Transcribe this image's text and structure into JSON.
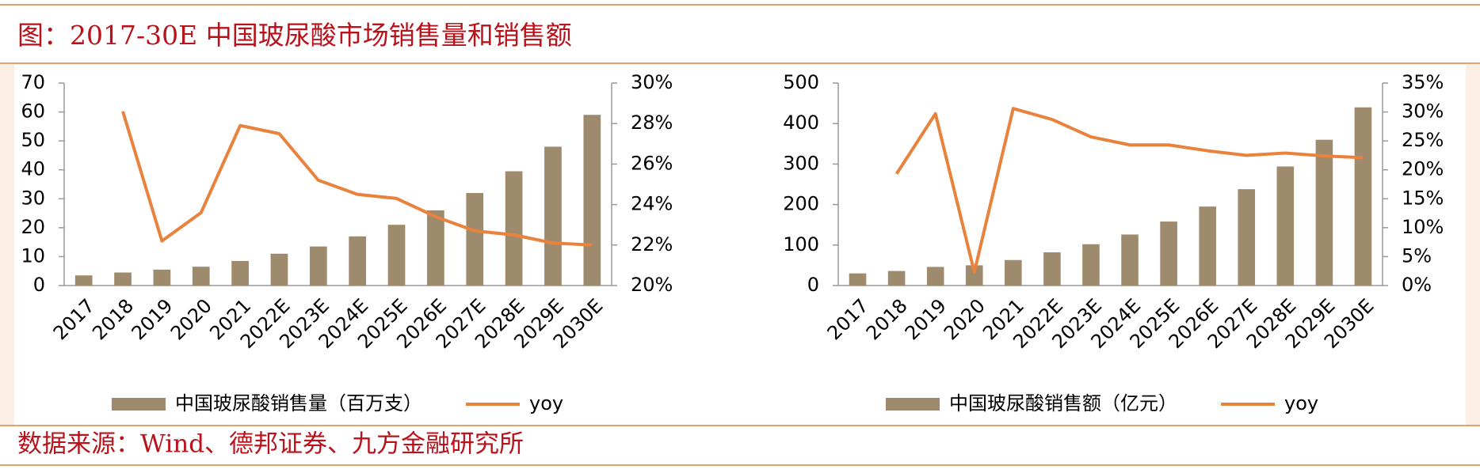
{
  "header": {
    "title": "图：2017-30E 中国玻尿酸市场销售量和销售额"
  },
  "footer": {
    "source": "数据来源：Wind、德邦证券、九方金融研究所"
  },
  "chart_data": [
    {
      "type": "bar",
      "categories": [
        "2017",
        "2018",
        "2019",
        "2020",
        "2021",
        "2022E",
        "2023E",
        "2024E",
        "2025E",
        "2026E",
        "2027E",
        "2028E",
        "2029E",
        "2030E"
      ],
      "series": [
        {
          "name": "中国玻尿酸销售量（百万支）",
          "color": "#9e8a6c",
          "type": "bar",
          "values": [
            3.5,
            4.5,
            5.5,
            6.5,
            8.5,
            11,
            13.5,
            17,
            21,
            26,
            32,
            39.5,
            48,
            59
          ]
        },
        {
          "name": "yoy",
          "color": "#e8823c",
          "type": "line",
          "axis": "y2",
          "values": [
            null,
            28.6,
            22.2,
            23.6,
            27.9,
            27.5,
            25.2,
            24.5,
            24.3,
            23.4,
            22.7,
            22.5,
            22.1,
            22.0
          ]
        }
      ],
      "ylim": [
        0,
        70
      ],
      "yticks": [
        0,
        10,
        20,
        30,
        40,
        50,
        60,
        70
      ],
      "y2lim": [
        20,
        30
      ],
      "y2ticks": [
        {
          "value": 20,
          "label": "20%"
        },
        {
          "value": 22,
          "label": "22%"
        },
        {
          "value": 24,
          "label": "24%"
        },
        {
          "value": 26,
          "label": "26%"
        },
        {
          "value": 28,
          "label": "28%"
        },
        {
          "value": 30,
          "label": "30%"
        }
      ],
      "legend": "bottom"
    },
    {
      "type": "bar",
      "categories": [
        "2017",
        "2018",
        "2019",
        "2020",
        "2021",
        "2022E",
        "2023E",
        "2024E",
        "2025E",
        "2026E",
        "2027E",
        "2028E",
        "2029E",
        "2030E"
      ],
      "series": [
        {
          "name": "中国玻尿酸销售额（亿元）",
          "color": "#9e8a6c",
          "type": "bar",
          "values": [
            30,
            36,
            46,
            50,
            63,
            82,
            102,
            126,
            158,
            195,
            238,
            294,
            360,
            440
          ]
        },
        {
          "name": "yoy",
          "color": "#e8823c",
          "type": "line",
          "axis": "y2",
          "values": [
            null,
            19.3,
            29.7,
            2.3,
            30.6,
            28.7,
            25.7,
            24.3,
            24.3,
            23.3,
            22.5,
            22.9,
            22.4,
            22.1
          ]
        }
      ],
      "ylim": [
        0,
        500
      ],
      "yticks": [
        0,
        100,
        200,
        300,
        400,
        500
      ],
      "y2lim": [
        0,
        35
      ],
      "y2ticks": [
        {
          "value": 0,
          "label": "0%"
        },
        {
          "value": 5,
          "label": "5%"
        },
        {
          "value": 10,
          "label": "10%"
        },
        {
          "value": 15,
          "label": "15%"
        },
        {
          "value": 20,
          "label": "20%"
        },
        {
          "value": 25,
          "label": "25%"
        },
        {
          "value": 30,
          "label": "30%"
        },
        {
          "value": 35,
          "label": "35%"
        }
      ],
      "legend": "bottom"
    }
  ]
}
